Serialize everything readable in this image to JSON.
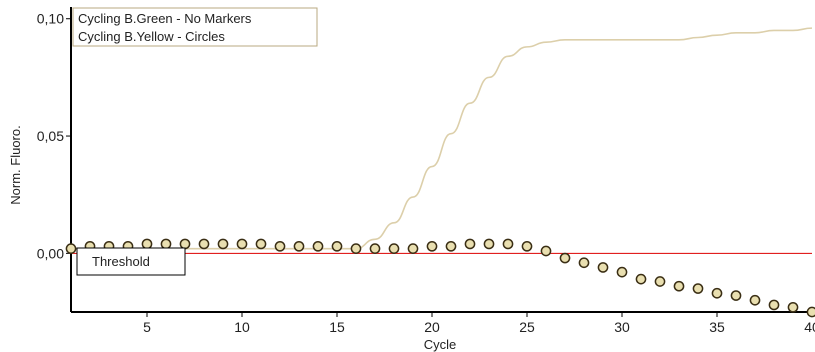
{
  "chart_data": {
    "type": "line",
    "xlabel": "Cycle",
    "ylabel": "Norm. Fluoro.",
    "xlim": [
      1,
      40
    ],
    "ylim": [
      -0.025,
      0.105
    ],
    "x_ticks": [
      5,
      10,
      15,
      20,
      25,
      30,
      35,
      40
    ],
    "x_tick_labels": [
      "5",
      "10",
      "15",
      "20",
      "25",
      "30",
      "35",
      "40"
    ],
    "y_ticks": [
      0.0,
      0.05,
      0.1
    ],
    "y_tick_labels": [
      "0,00",
      "0,05",
      "0,10"
    ],
    "legend_position": "top-left",
    "legend": [
      "Cycling B.Green - No Markers",
      "Cycling B.Yellow - Circles"
    ],
    "threshold": {
      "label": "Threshold",
      "value": 0.0,
      "color": "#dd0000"
    },
    "series": [
      {
        "name": "Cycling B.Green - No Markers",
        "marker": "none",
        "color": "#dccfaa",
        "x": [
          1,
          2,
          3,
          4,
          5,
          6,
          7,
          8,
          9,
          10,
          11,
          12,
          13,
          14,
          15,
          16,
          17,
          18,
          19,
          20,
          21,
          22,
          23,
          24,
          25,
          26,
          27,
          28,
          29,
          30,
          31,
          32,
          33,
          34,
          35,
          36,
          37,
          38,
          39,
          40
        ],
        "y": [
          0.002,
          0.002,
          0.002,
          0.002,
          0.002,
          0.002,
          0.002,
          0.002,
          0.002,
          0.002,
          0.002,
          0.002,
          0.002,
          0.002,
          0.002,
          0.002,
          0.006,
          0.013,
          0.024,
          0.037,
          0.051,
          0.064,
          0.075,
          0.084,
          0.088,
          0.09,
          0.091,
          0.091,
          0.091,
          0.091,
          0.091,
          0.091,
          0.091,
          0.092,
          0.093,
          0.094,
          0.094,
          0.095,
          0.095,
          0.096
        ]
      },
      {
        "name": "Cycling B.Yellow - Circles",
        "marker": "circle",
        "color": "#e9dfb0",
        "x": [
          1,
          2,
          3,
          4,
          5,
          6,
          7,
          8,
          9,
          10,
          11,
          12,
          13,
          14,
          15,
          16,
          17,
          18,
          19,
          20,
          21,
          22,
          23,
          24,
          25,
          26,
          27,
          28,
          29,
          30,
          31,
          32,
          33,
          34,
          35,
          36,
          37,
          38,
          39,
          40
        ],
        "y": [
          0.002,
          0.003,
          0.003,
          0.003,
          0.004,
          0.004,
          0.004,
          0.004,
          0.004,
          0.004,
          0.004,
          0.003,
          0.003,
          0.003,
          0.003,
          0.002,
          0.002,
          0.002,
          0.002,
          0.003,
          0.003,
          0.004,
          0.004,
          0.004,
          0.003,
          0.001,
          -0.002,
          -0.004,
          -0.006,
          -0.008,
          -0.011,
          -0.012,
          -0.014,
          -0.015,
          -0.017,
          -0.018,
          -0.02,
          -0.022,
          -0.023,
          -0.025
        ]
      }
    ]
  },
  "colors": {
    "axis": "#000000",
    "threshold_line": "#dd0000",
    "marker_stroke": "#3a2e14",
    "legend_border": "#b8aa80"
  }
}
